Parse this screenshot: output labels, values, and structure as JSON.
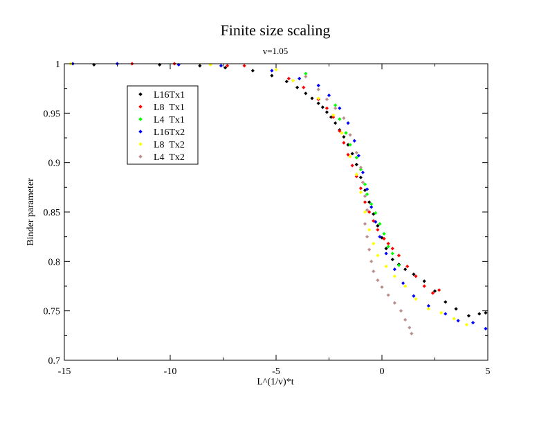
{
  "chart_data": {
    "type": "scatter",
    "title": "Finite size scaling",
    "subtitle": "v=1.05",
    "xlabel": "L^(1/v)*t",
    "ylabel": "Binder parameter",
    "xlim": [
      -15,
      5
    ],
    "ylim": [
      0.7,
      1.0
    ],
    "xticks": [
      -15,
      -10,
      -5,
      0,
      5
    ],
    "yticks": [
      0.7,
      0.75,
      0.8,
      0.85,
      0.9,
      0.95,
      1
    ],
    "xtick_labels": [
      "-15",
      "-10",
      "-5",
      "0",
      "5"
    ],
    "ytick_labels": [
      "0.7",
      "0.75",
      "0.8",
      "0.85",
      "0.9",
      "0.95",
      "1"
    ],
    "grid": false,
    "legend_position": "top-left",
    "series": [
      {
        "name": "L16Tx1",
        "color": "#000000",
        "points": [
          [
            -13.6,
            0.999
          ],
          [
            -10.5,
            0.999
          ],
          [
            -8.6,
            0.998
          ],
          [
            -7.4,
            0.996
          ],
          [
            -6.1,
            0.993
          ],
          [
            -5.2,
            0.988
          ],
          [
            -4.5,
            0.982
          ],
          [
            -4.0,
            0.976
          ],
          [
            -3.6,
            0.97
          ],
          [
            -3.3,
            0.965
          ],
          [
            -3.0,
            0.96
          ],
          [
            -2.8,
            0.956
          ],
          [
            -2.6,
            0.951
          ],
          [
            -2.4,
            0.946
          ],
          [
            -2.2,
            0.94
          ],
          [
            -2.0,
            0.933
          ],
          [
            -1.8,
            0.926
          ],
          [
            -1.6,
            0.918
          ],
          [
            -1.4,
            0.909
          ],
          [
            -1.2,
            0.898
          ],
          [
            -1.0,
            0.885
          ],
          [
            -0.8,
            0.872
          ],
          [
            -0.6,
            0.86
          ],
          [
            -0.4,
            0.848
          ],
          [
            -0.2,
            0.836
          ],
          [
            0.0,
            0.824
          ],
          [
            0.2,
            0.813
          ],
          [
            0.5,
            0.802
          ],
          [
            0.8,
            0.797
          ],
          [
            1.1,
            0.792
          ],
          [
            1.5,
            0.787
          ],
          [
            2.0,
            0.78
          ],
          [
            2.5,
            0.77
          ],
          [
            3.0,
            0.759
          ],
          [
            3.5,
            0.752
          ],
          [
            4.1,
            0.745
          ],
          [
            4.6,
            0.747
          ],
          [
            4.9,
            0.748
          ]
        ]
      },
      {
        "name": "L8  Tx1",
        "color": "#ff0000",
        "points": [
          [
            -11.8,
            1.0
          ],
          [
            -9.8,
            1.0
          ],
          [
            -7.3,
            0.998
          ],
          [
            -6.5,
            0.998
          ],
          [
            -4.4,
            0.985
          ],
          [
            -3.7,
            0.976
          ],
          [
            -3.0,
            0.964
          ],
          [
            -2.6,
            0.955
          ],
          [
            -2.3,
            0.946
          ],
          [
            -2.0,
            0.932
          ],
          [
            -1.8,
            0.92
          ],
          [
            -1.6,
            0.908
          ],
          [
            -1.4,
            0.897
          ],
          [
            -1.2,
            0.886
          ],
          [
            -1.0,
            0.874
          ],
          [
            -0.8,
            0.86
          ],
          [
            -0.6,
            0.85
          ],
          [
            -0.4,
            0.841
          ],
          [
            -0.2,
            0.832
          ],
          [
            0.1,
            0.823
          ],
          [
            0.3,
            0.818
          ],
          [
            0.5,
            0.813
          ],
          [
            0.8,
            0.806
          ],
          [
            1.2,
            0.795
          ],
          [
            1.6,
            0.785
          ],
          [
            2.0,
            0.775
          ],
          [
            2.4,
            0.768
          ],
          [
            2.7,
            0.771
          ]
        ]
      },
      {
        "name": "L4  Tx1",
        "color": "#00ff00",
        "points": [
          [
            -3.6,
            0.99
          ],
          [
            -2.2,
            0.958
          ],
          [
            -2.0,
            0.944
          ],
          [
            -1.7,
            0.93
          ],
          [
            -1.5,
            0.918
          ],
          [
            -1.2,
            0.905
          ],
          [
            -1.0,
            0.893
          ],
          [
            -0.8,
            0.878
          ],
          [
            -0.7,
            0.868
          ],
          [
            -0.5,
            0.858
          ],
          [
            -0.3,
            0.849
          ],
          [
            -0.1,
            0.838
          ],
          [
            0.1,
            0.828
          ],
          [
            0.3,
            0.815
          ],
          [
            0.5,
            0.808
          ],
          [
            0.8,
            0.796
          ]
        ]
      },
      {
        "name": "L16Tx2",
        "color": "#0000ff",
        "points": [
          [
            -14.6,
            1.0
          ],
          [
            -12.5,
            1.0
          ],
          [
            -9.6,
            0.999
          ],
          [
            -7.6,
            0.998
          ],
          [
            -5.2,
            0.993
          ],
          [
            -3.9,
            0.985
          ],
          [
            -3.0,
            0.978
          ],
          [
            -2.5,
            0.968
          ],
          [
            -2.0,
            0.955
          ],
          [
            -1.6,
            0.94
          ],
          [
            -1.3,
            0.922
          ],
          [
            -1.1,
            0.907
          ],
          [
            -0.9,
            0.89
          ],
          [
            -0.7,
            0.873
          ],
          [
            -0.5,
            0.855
          ],
          [
            -0.3,
            0.84
          ],
          [
            -0.1,
            0.825
          ],
          [
            0.2,
            0.808
          ],
          [
            0.6,
            0.792
          ],
          [
            1.0,
            0.778
          ],
          [
            1.5,
            0.765
          ],
          [
            2.2,
            0.755
          ],
          [
            3.0,
            0.747
          ],
          [
            3.6,
            0.74
          ],
          [
            4.3,
            0.738
          ],
          [
            4.9,
            0.732
          ]
        ]
      },
      {
        "name": "L8  Tx2",
        "color": "#ffff00",
        "points": [
          [
            -14.7,
            1.0
          ],
          [
            -8.1,
            0.999
          ],
          [
            -5.0,
            0.994
          ],
          [
            -4.2,
            0.983
          ],
          [
            -3.0,
            0.965
          ],
          [
            -2.3,
            0.948
          ],
          [
            -1.9,
            0.93
          ],
          [
            -1.5,
            0.906
          ],
          [
            -1.2,
            0.888
          ],
          [
            -1.0,
            0.87
          ],
          [
            -0.8,
            0.85
          ],
          [
            -0.6,
            0.832
          ],
          [
            -0.4,
            0.818
          ],
          [
            -0.2,
            0.806
          ],
          [
            0.2,
            0.795
          ],
          [
            0.6,
            0.785
          ],
          [
            1.1,
            0.775
          ],
          [
            1.6,
            0.762
          ],
          [
            2.2,
            0.752
          ],
          [
            2.8,
            0.748
          ],
          [
            3.4,
            0.742
          ],
          [
            4.0,
            0.736
          ]
        ]
      },
      {
        "name": "L4  Tx2",
        "color": "#bc8f8f",
        "points": [
          [
            -3.6,
            0.987
          ],
          [
            -3.0,
            0.974
          ],
          [
            -2.6,
            0.964
          ],
          [
            -2.2,
            0.955
          ],
          [
            -1.8,
            0.945
          ],
          [
            -1.5,
            0.928
          ],
          [
            -1.2,
            0.91
          ],
          [
            -1.0,
            0.895
          ],
          [
            -0.9,
            0.88
          ],
          [
            -0.8,
            0.866
          ],
          [
            -0.7,
            0.852
          ],
          [
            -0.8,
            0.838
          ],
          [
            -0.7,
            0.825
          ],
          [
            -0.6,
            0.812
          ],
          [
            -0.5,
            0.8
          ],
          [
            -0.4,
            0.79
          ],
          [
            -0.2,
            0.781
          ],
          [
            0.0,
            0.774
          ],
          [
            0.3,
            0.766
          ],
          [
            0.6,
            0.758
          ],
          [
            0.9,
            0.75
          ],
          [
            1.1,
            0.741
          ],
          [
            1.3,
            0.733
          ],
          [
            1.4,
            0.727
          ]
        ]
      }
    ]
  }
}
